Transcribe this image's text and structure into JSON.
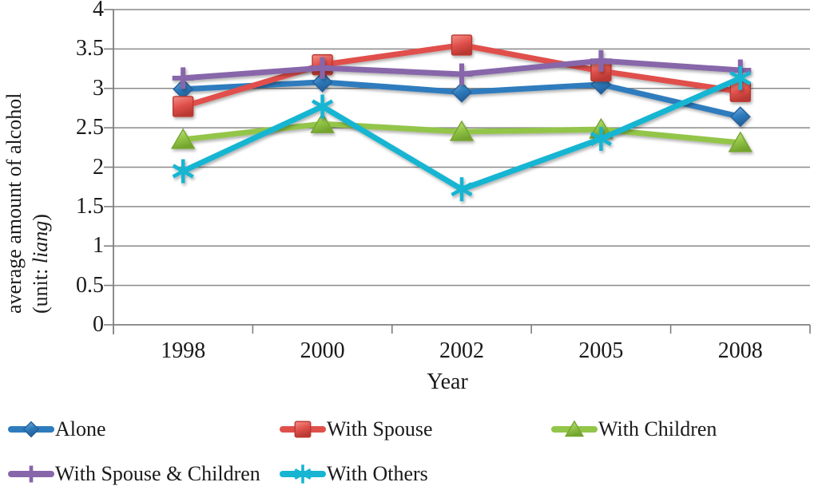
{
  "chart_data": {
    "type": "line",
    "title": "",
    "xlabel": "Year",
    "ylabel_line1": "average amount of alcohol",
    "ylabel_unit_prefix": "(unit: ",
    "ylabel_unit": "liang",
    "ylabel_unit_suffix": ")",
    "categories": [
      "1998",
      "2000",
      "2002",
      "2005",
      "2008"
    ],
    "ylim": [
      0,
      4
    ],
    "ytick_step": 0.5,
    "yticks": [
      "0",
      "0.5",
      "1",
      "1.5",
      "2",
      "2.5",
      "3",
      "3.5",
      "4"
    ],
    "grid": true,
    "legend_position": "bottom-left-two-rows",
    "series": [
      {
        "name": "Alone",
        "marker": "diamond",
        "color": "#2E7CBE",
        "color_light": "#7FB2E0",
        "color_dark": "#255F98",
        "values": [
          2.99,
          3.08,
          2.95,
          3.05,
          2.64
        ]
      },
      {
        "name": "With Spouse",
        "marker": "square",
        "color": "#E0504B",
        "color_light": "#F4918A",
        "color_dark": "#B93832",
        "values": [
          2.77,
          3.3,
          3.55,
          3.22,
          2.96
        ]
      },
      {
        "name": "With Children",
        "marker": "triangle",
        "color": "#93C548",
        "color_light": "#C9E594",
        "color_dark": "#74A42E",
        "values": [
          2.35,
          2.55,
          2.45,
          2.48,
          2.31
        ]
      },
      {
        "name": "With Spouse & Children",
        "marker": "plus",
        "color": "#8766AA",
        "color_light": "#AD93C6",
        "color_dark": "#6C5190",
        "values": [
          3.13,
          3.26,
          3.18,
          3.35,
          3.23
        ]
      },
      {
        "name": "With Others",
        "marker": "asterisk",
        "color": "#17B5D2",
        "color_light": "#6BD4E6",
        "color_dark": "#0F93AC",
        "values": [
          1.95,
          2.77,
          1.72,
          2.36,
          3.13
        ]
      }
    ],
    "colors": {
      "gridline": "#8A8A8A",
      "axis": "#7F7F7F",
      "text": "#1A1A1A",
      "background": "#FFFFFF"
    }
  }
}
